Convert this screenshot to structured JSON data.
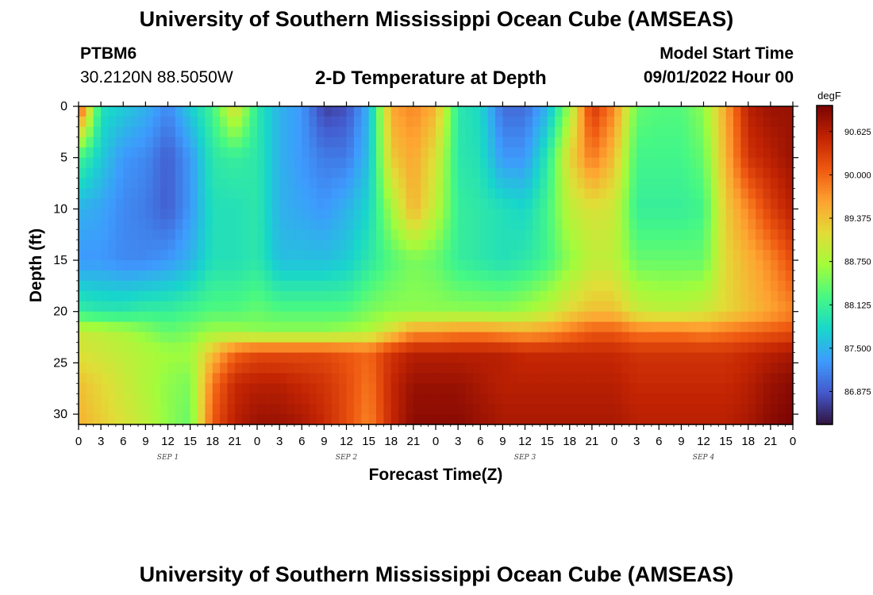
{
  "page": {
    "title": "University of Southern Mississippi Ocean Cube (AMSEAS)",
    "station_id": "PTBM6",
    "station_coords": "30.2120N  88.5050W",
    "plot_title": "2-D Temperature at Depth",
    "model_start_label": "Model Start Time",
    "model_start_value": "09/01/2022 Hour 00",
    "footer_title": "University of Southern Mississippi Ocean Cube (AMSEAS)"
  },
  "chart_data": {
    "type": "heatmap",
    "title": "2-D Temperature at Depth",
    "xlabel": "Forecast Time(Z)",
    "ylabel": "Depth (ft)",
    "x_tick_labels": [
      "0",
      "3",
      "6",
      "9",
      "12",
      "15",
      "18",
      "21",
      "0",
      "3",
      "6",
      "9",
      "12",
      "15",
      "18",
      "21",
      "0",
      "3",
      "6",
      "9",
      "12",
      "15",
      "18",
      "21",
      "0",
      "3",
      "6",
      "9",
      "12",
      "15",
      "18",
      "21",
      "0"
    ],
    "day_labels": [
      "SEP 1",
      "SEP 2",
      "SEP 3",
      "SEP 4"
    ],
    "y_ticks": [
      0,
      5,
      10,
      15,
      20,
      25,
      30
    ],
    "y_range": [
      0,
      31
    ],
    "x_range_hours": [
      0,
      96
    ],
    "colorbar": {
      "unit": "degF",
      "tick_labels": [
        "90.625",
        "90.000",
        "89.375",
        "88.750",
        "88.125",
        "87.500",
        "86.875"
      ],
      "tick_values": [
        90.625,
        90.0,
        89.375,
        88.75,
        88.125,
        87.5,
        86.875
      ],
      "range": [
        86.4,
        91.0
      ],
      "colors": [
        "#30123b",
        "#4458cb",
        "#3e9bfe",
        "#18d6cb",
        "#46f884",
        "#a2fc3c",
        "#e1dd37",
        "#fea331",
        "#ef5911",
        "#c22403",
        "#7a0403"
      ]
    },
    "grid": false,
    "depths_ft": [
      0,
      5,
      10,
      15,
      20,
      22,
      24,
      27,
      31
    ],
    "hours": [
      0,
      3,
      6,
      9,
      12,
      15,
      18,
      21,
      24,
      27,
      30,
      33,
      36,
      39,
      42,
      45,
      48,
      51,
      54,
      57,
      60,
      63,
      66,
      69,
      72,
      75,
      78,
      81,
      84,
      87,
      90,
      93,
      96
    ],
    "temperature_degF": [
      [
        90.3,
        87.9,
        87.7,
        87.5,
        87.2,
        87.7,
        88.2,
        89.2,
        88.0,
        87.5,
        87.3,
        86.7,
        86.8,
        87.5,
        89.6,
        89.8,
        89.5,
        88.0,
        87.8,
        87.0,
        87.0,
        87.5,
        88.7,
        90.4,
        89.8,
        88.4,
        88.3,
        88.3,
        88.6,
        89.6,
        90.6,
        90.8,
        90.8
      ],
      [
        88.2,
        87.7,
        87.3,
        87.2,
        86.9,
        87.3,
        88.0,
        88.1,
        88.0,
        87.5,
        87.3,
        87.1,
        87.1,
        87.6,
        89.3,
        89.6,
        89.1,
        88.0,
        87.9,
        87.3,
        87.3,
        88.0,
        89.2,
        89.9,
        89.4,
        88.2,
        88.2,
        88.2,
        88.4,
        89.5,
        90.4,
        90.6,
        90.8
      ],
      [
        87.5,
        87.4,
        87.2,
        87.1,
        86.9,
        87.3,
        87.9,
        87.9,
        88.0,
        87.5,
        87.4,
        87.3,
        87.5,
        87.8,
        88.7,
        89.5,
        88.9,
        88.1,
        88.0,
        87.9,
        87.8,
        88.2,
        88.9,
        89.1,
        89.0,
        88.1,
        88.1,
        88.1,
        88.2,
        89.3,
        89.8,
        90.3,
        90.6
      ],
      [
        87.3,
        87.3,
        87.2,
        87.2,
        87.3,
        87.5,
        87.9,
        87.9,
        88.0,
        87.6,
        87.6,
        87.6,
        87.7,
        88.0,
        88.3,
        88.5,
        88.4,
        88.1,
        88.0,
        87.9,
        88.0,
        88.2,
        88.6,
        88.9,
        88.9,
        88.4,
        88.4,
        88.4,
        88.4,
        89.2,
        89.5,
        89.8,
        90.2
      ],
      [
        88.1,
        88.0,
        88.0,
        88.1,
        88.1,
        88.2,
        88.3,
        88.3,
        88.4,
        88.3,
        88.3,
        88.3,
        88.3,
        88.5,
        88.6,
        88.6,
        88.6,
        88.6,
        88.6,
        88.6,
        88.7,
        88.9,
        89.2,
        89.4,
        89.4,
        89.0,
        88.9,
        88.9,
        89.0,
        89.2,
        89.4,
        89.6,
        89.8
      ],
      [
        89.0,
        88.9,
        88.8,
        88.6,
        88.4,
        88.5,
        88.7,
        88.7,
        88.6,
        88.6,
        88.6,
        88.6,
        88.7,
        88.8,
        89.2,
        89.7,
        89.7,
        89.8,
        89.8,
        89.7,
        89.6,
        89.7,
        89.9,
        90.1,
        90.1,
        89.9,
        89.9,
        89.9,
        89.8,
        89.9,
        90.0,
        90.1,
        90.2
      ],
      [
        89.1,
        89.0,
        88.9,
        88.8,
        88.7,
        88.7,
        89.4,
        90.0,
        90.2,
        90.2,
        90.2,
        90.2,
        90.1,
        90.0,
        90.4,
        90.6,
        90.6,
        90.6,
        90.6,
        90.6,
        90.5,
        90.5,
        90.5,
        90.5,
        90.5,
        90.4,
        90.4,
        90.4,
        90.4,
        90.4,
        90.5,
        90.6,
        90.7
      ],
      [
        89.4,
        89.2,
        89.0,
        88.8,
        88.6,
        88.5,
        89.9,
        90.5,
        90.6,
        90.6,
        90.5,
        90.4,
        90.2,
        89.9,
        90.5,
        90.8,
        90.8,
        90.8,
        90.7,
        90.6,
        90.6,
        90.6,
        90.6,
        90.6,
        90.6,
        90.5,
        90.5,
        90.5,
        90.5,
        90.5,
        90.6,
        90.8,
        90.9
      ],
      [
        89.5,
        89.3,
        89.1,
        88.9,
        88.6,
        88.4,
        90.1,
        90.6,
        90.8,
        90.8,
        90.7,
        90.5,
        90.2,
        89.8,
        90.5,
        90.9,
        90.9,
        90.9,
        90.8,
        90.7,
        90.7,
        90.7,
        90.7,
        90.7,
        90.7,
        90.6,
        90.6,
        90.6,
        90.6,
        90.6,
        90.7,
        90.9,
        91.0
      ]
    ]
  }
}
